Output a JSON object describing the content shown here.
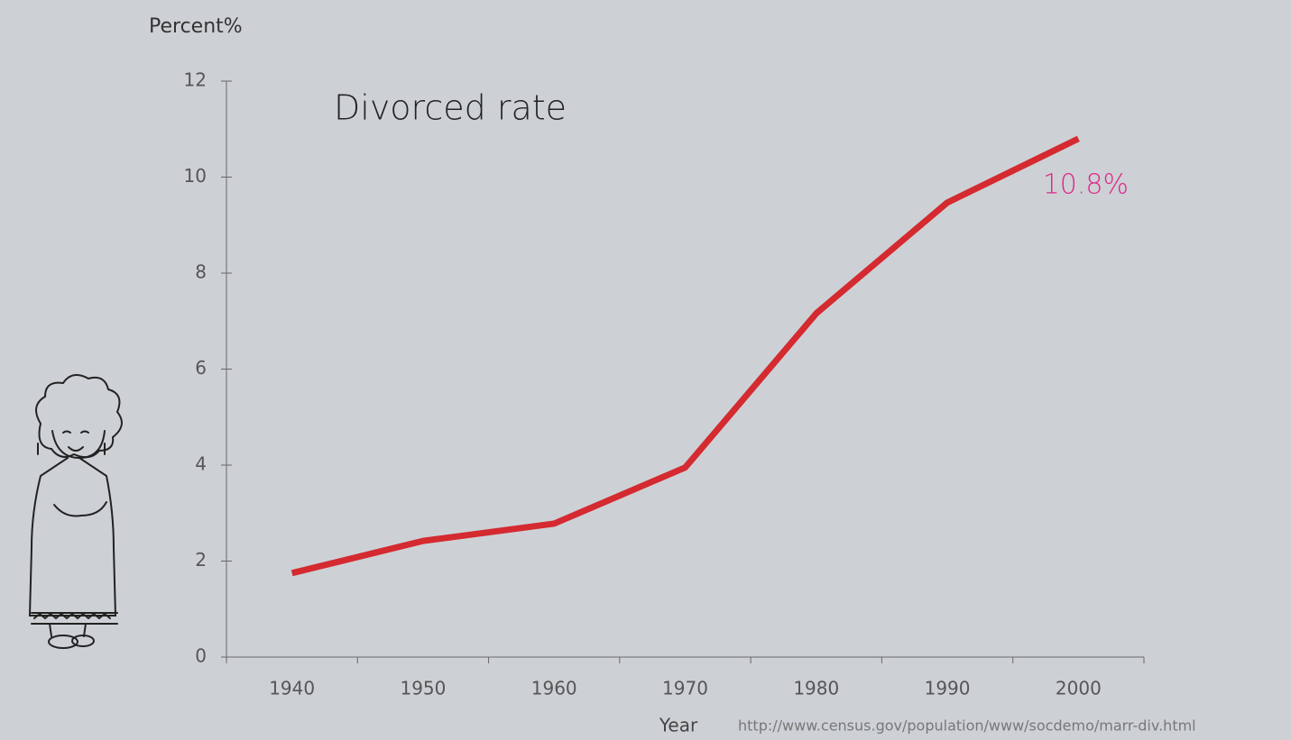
{
  "chart_data": {
    "type": "line",
    "title": "Divorced rate",
    "y_label": "Percent%",
    "x_label": "Year",
    "source": "http://www.census.gov/population/www/socdemo/marr-div.html",
    "categories": [
      "1940",
      "1950",
      "1960",
      "1970",
      "1980",
      "1990",
      "2000"
    ],
    "series": [
      {
        "name": "Divorced rate",
        "color": "#d42a30",
        "values": [
          1.75,
          2.42,
          2.78,
          3.95,
          7.16,
          9.47,
          10.8
        ],
        "value_labels": [
          null,
          null,
          null,
          null,
          null,
          null,
          "10.8%"
        ]
      }
    ],
    "value_label_color": "#e0288a",
    "ylim": [
      0,
      12
    ],
    "yticks": [
      0,
      2,
      4,
      6,
      8,
      10,
      12
    ],
    "grid": false
  }
}
